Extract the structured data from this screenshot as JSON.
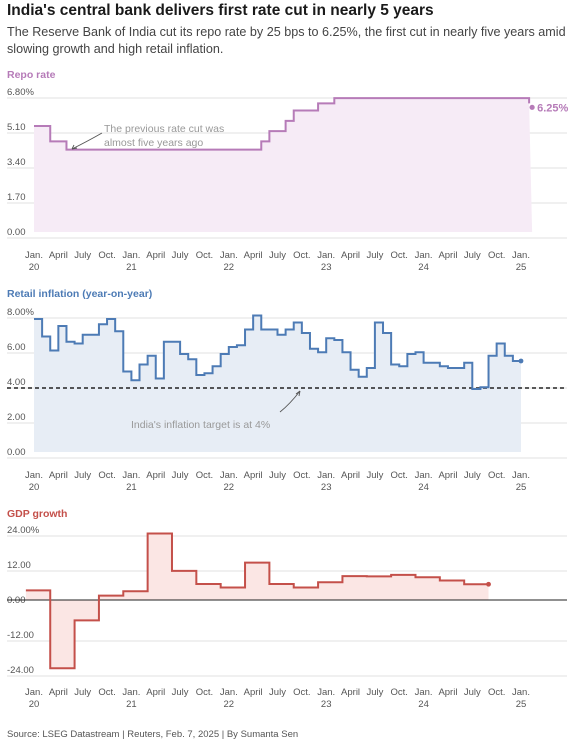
{
  "headline": "India's central bank delivers first rate cut in nearly 5 years",
  "subhead": "The Reserve Bank of India cut its repo rate by 25 bps to 6.25%, the first cut in nearly five years amid slowing growth and high retail inflation.",
  "source": "Source: LSEG Datastream | Reuters, Feb. 7, 2025 | By Sumanta Sen",
  "colors": {
    "repo": "#b67bb8",
    "inflation": "#4d7bb5",
    "gdp": "#c4504a"
  },
  "chart_data": [
    {
      "type": "line",
      "title": "Repo rate",
      "ylim": [
        0,
        6.8
      ],
      "y_ticks": [
        "6.80%",
        "5.10",
        "3.40",
        "1.70",
        "0.00"
      ],
      "x_ticks": [
        {
          "month": "Jan.",
          "year": "20"
        },
        {
          "month": "April",
          "year": ""
        },
        {
          "month": "July",
          "year": ""
        },
        {
          "month": "Oct.",
          "year": ""
        },
        {
          "month": "Jan.",
          "year": "21"
        },
        {
          "month": "April",
          "year": ""
        },
        {
          "month": "July",
          "year": ""
        },
        {
          "month": "Oct.",
          "year": ""
        },
        {
          "month": "Jan.",
          "year": "22"
        },
        {
          "month": "April",
          "year": ""
        },
        {
          "month": "July",
          "year": ""
        },
        {
          "month": "Oct.",
          "year": ""
        },
        {
          "month": "Jan.",
          "year": "23"
        },
        {
          "month": "April",
          "year": ""
        },
        {
          "month": "July",
          "year": ""
        },
        {
          "month": "Oct.",
          "year": ""
        },
        {
          "month": "Jan.",
          "year": "24"
        },
        {
          "month": "April",
          "year": ""
        },
        {
          "month": "July",
          "year": ""
        },
        {
          "month": "Oct.",
          "year": ""
        },
        {
          "month": "Jan.",
          "year": "25"
        }
      ],
      "x": [
        "2020-01",
        "2020-03",
        "2020-05",
        "2022-05",
        "2022-06",
        "2022-08",
        "2022-09",
        "2022-12",
        "2023-02",
        "2025-01",
        "2025-02"
      ],
      "values": [
        5.15,
        4.4,
        4.0,
        4.4,
        4.9,
        5.4,
        5.9,
        6.25,
        6.5,
        6.5,
        6.25
      ],
      "end_label": "6.25%",
      "annotation": "The previous rate cut was almost five years ago",
      "reference_line": null
    },
    {
      "type": "line",
      "title": "Retail inflation (year-on-year)",
      "ylim": [
        0,
        8
      ],
      "y_ticks": [
        "8.00%",
        "6.00",
        "4.00",
        "2.00",
        "0.00"
      ],
      "x": [
        "2020-01",
        "2020-02",
        "2020-03",
        "2020-04",
        "2020-05",
        "2020-06",
        "2020-07",
        "2020-08",
        "2020-09",
        "2020-10",
        "2020-11",
        "2020-12",
        "2021-01",
        "2021-02",
        "2021-03",
        "2021-04",
        "2021-05",
        "2021-06",
        "2021-07",
        "2021-08",
        "2021-09",
        "2021-10",
        "2021-11",
        "2021-12",
        "2022-01",
        "2022-02",
        "2022-03",
        "2022-04",
        "2022-05",
        "2022-06",
        "2022-07",
        "2022-08",
        "2022-09",
        "2022-10",
        "2022-11",
        "2022-12",
        "2023-01",
        "2023-02",
        "2023-03",
        "2023-04",
        "2023-05",
        "2023-06",
        "2023-07",
        "2023-08",
        "2023-09",
        "2023-10",
        "2023-11",
        "2023-12",
        "2024-01",
        "2024-02",
        "2024-03",
        "2024-04",
        "2024-05",
        "2024-06",
        "2024-07",
        "2024-08",
        "2024-09",
        "2024-10",
        "2024-11",
        "2024-12"
      ],
      "values": [
        7.6,
        6.6,
        5.8,
        7.2,
        6.3,
        6.2,
        6.7,
        6.7,
        7.3,
        7.6,
        6.9,
        4.6,
        4.1,
        5.0,
        5.5,
        4.2,
        6.3,
        6.3,
        5.6,
        5.3,
        4.4,
        4.5,
        4.9,
        5.6,
        6.0,
        6.1,
        7.0,
        7.8,
        7.0,
        7.0,
        6.7,
        7.0,
        7.4,
        6.8,
        5.9,
        5.7,
        6.5,
        6.4,
        5.7,
        4.7,
        4.3,
        4.8,
        7.4,
        6.8,
        5.0,
        4.9,
        5.6,
        5.7,
        5.1,
        5.1,
        4.9,
        4.8,
        4.8,
        5.1,
        3.6,
        3.7,
        5.5,
        6.2,
        5.5,
        5.2
      ],
      "reference_line": {
        "value": 4,
        "label": "India's inflation target is at 4%"
      }
    },
    {
      "type": "line",
      "title": "GDP growth",
      "ylim": [
        -24,
        24
      ],
      "y_ticks": [
        "24.00%",
        "12.00",
        "0.00",
        "-12.00",
        "-24.00"
      ],
      "x": [
        "2019-12",
        "2020-03",
        "2020-06",
        "2020-09",
        "2020-12",
        "2021-03",
        "2021-06",
        "2021-09",
        "2021-12",
        "2022-03",
        "2022-06",
        "2022-09",
        "2022-12",
        "2023-03",
        "2023-06",
        "2023-09",
        "2023-12",
        "2024-03",
        "2024-06",
        "2024-09"
      ],
      "values": [
        3.3,
        -23.4,
        -7.0,
        1.5,
        3.0,
        22.8,
        10.0,
        5.5,
        4.3,
        12.8,
        5.5,
        4.3,
        6.1,
        8.2,
        8.1,
        8.6,
        7.8,
        6.7,
        5.4,
        5.4
      ],
      "zero_line": true
    }
  ]
}
